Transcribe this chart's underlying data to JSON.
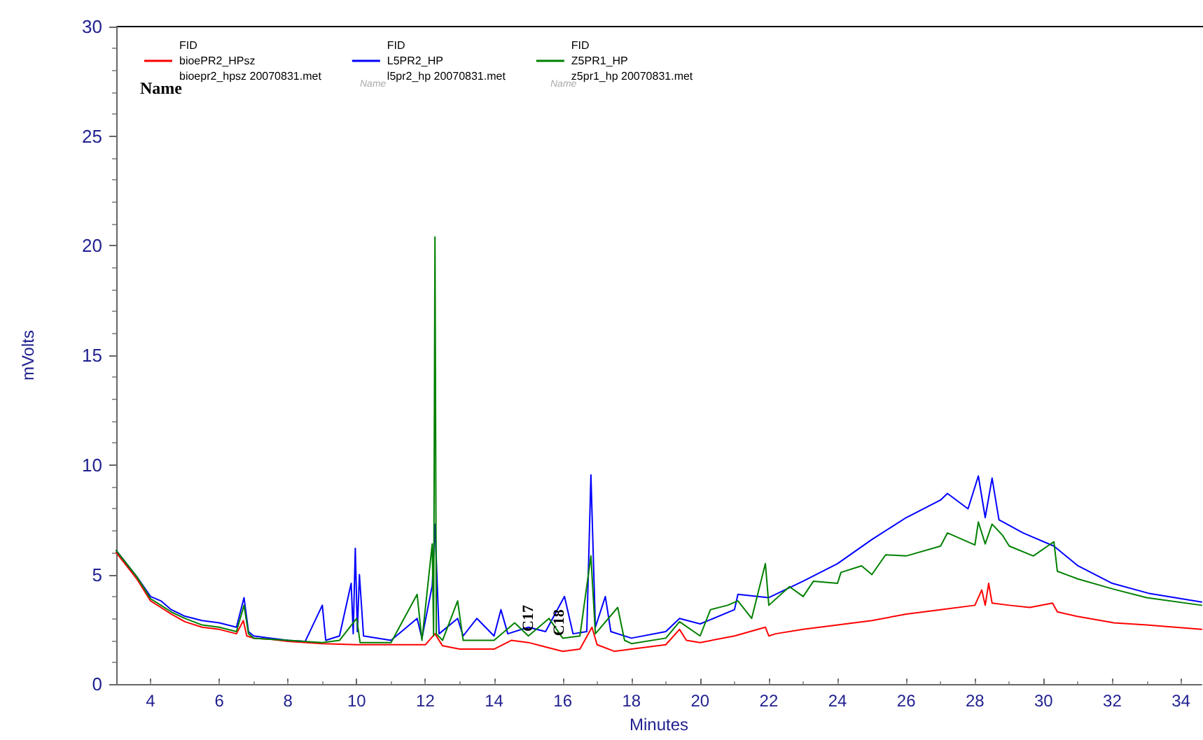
{
  "chart_data": {
    "type": "line",
    "xlabel": "Minutes",
    "ylabel": "mVolts",
    "xlim": [
      3,
      34.6
    ],
    "ylim": [
      0,
      30
    ],
    "xticks": [
      4,
      6,
      8,
      10,
      12,
      14,
      16,
      18,
      20,
      22,
      24,
      26,
      28,
      30,
      32,
      34
    ],
    "yticks": [
      0,
      5,
      10,
      15,
      20,
      25,
      30
    ],
    "grid": false,
    "legend": "top left",
    "marker": "none",
    "line_style": "solid",
    "annotations": [
      "Name",
      "Name",
      "Name",
      {
        "text": "C17",
        "x": 14.8,
        "y": 2.4
      },
      {
        "text": "C18",
        "x": 15.7,
        "y": 2.2
      }
    ],
    "series": [
      {
        "name": "FID\nbioePR2_HPsz\nbioepr2_hpsz 20070831.met",
        "color": "#ff0000",
        "x": [
          3.0,
          3.3,
          3.6,
          4.0,
          4.3,
          4.6,
          5.0,
          5.5,
          6.0,
          6.5,
          6.7,
          6.8,
          7.0,
          7.5,
          8.0,
          9.0,
          10.0,
          11.0,
          12.0,
          12.28,
          12.5,
          13.0,
          14.0,
          14.5,
          15.0,
          15.5,
          16.0,
          16.5,
          16.85,
          17.0,
          17.5,
          18.0,
          19.0,
          19.4,
          19.6,
          20.0,
          21.0,
          21.9,
          22.0,
          22.2,
          23.0,
          24.0,
          25.0,
          26.0,
          27.0,
          28.0,
          28.2,
          28.3,
          28.4,
          28.5,
          29.0,
          29.6,
          30.26,
          30.4,
          30.95,
          32.05,
          33.0,
          34.6
        ],
        "values": [
          6.0,
          5.4,
          4.8,
          3.8,
          3.5,
          3.2,
          2.85,
          2.6,
          2.5,
          2.3,
          2.9,
          2.2,
          2.1,
          2.05,
          1.95,
          1.85,
          1.8,
          1.8,
          1.8,
          2.3,
          1.75,
          1.6,
          1.6,
          2.0,
          1.9,
          1.7,
          1.5,
          1.6,
          2.6,
          1.8,
          1.5,
          1.6,
          1.8,
          2.5,
          2.0,
          1.9,
          2.2,
          2.6,
          2.2,
          2.3,
          2.5,
          2.7,
          2.9,
          3.2,
          3.4,
          3.6,
          4.3,
          3.6,
          4.6,
          3.7,
          3.6,
          3.5,
          3.7,
          3.3,
          3.1,
          2.8,
          2.7,
          2.5
        ]
      },
      {
        "name": "FID\nL5PR2_HP\nl5pr2_hp 20070831.met",
        "color": "#0000ff",
        "x": [
          3.0,
          3.3,
          3.6,
          4.0,
          4.3,
          4.6,
          5.0,
          5.5,
          6.0,
          6.5,
          6.72,
          6.85,
          7.0,
          7.5,
          8.0,
          8.5,
          9.0,
          9.1,
          9.5,
          9.84,
          9.9,
          9.96,
          10.02,
          10.08,
          10.2,
          11.0,
          11.76,
          11.9,
          12.2,
          12.28,
          12.4,
          12.94,
          13.1,
          13.5,
          14.0,
          14.2,
          14.4,
          15.0,
          15.5,
          16.05,
          16.3,
          16.7,
          16.82,
          16.95,
          17.24,
          17.4,
          18.0,
          19.0,
          19.4,
          20.0,
          21.0,
          21.1,
          22.0,
          23.0,
          24.0,
          25.0,
          26.0,
          27.0,
          27.2,
          27.8,
          28.1,
          28.3,
          28.5,
          28.7,
          29.4,
          30.3,
          31.0,
          32.0,
          33.05,
          34.6
        ],
        "values": [
          6.1,
          5.5,
          4.9,
          4.0,
          3.8,
          3.4,
          3.1,
          2.9,
          2.8,
          2.6,
          3.95,
          2.4,
          2.2,
          2.1,
          2.0,
          1.95,
          3.6,
          2.0,
          2.2,
          4.6,
          2.3,
          6.2,
          2.4,
          5.0,
          2.2,
          2.0,
          3.0,
          2.1,
          4.5,
          7.3,
          2.3,
          3.0,
          2.2,
          3.0,
          2.2,
          3.4,
          2.3,
          2.6,
          2.4,
          4.0,
          2.3,
          2.4,
          9.55,
          2.6,
          4.0,
          2.4,
          2.1,
          2.4,
          3.0,
          2.75,
          3.4,
          4.1,
          3.95,
          4.7,
          5.5,
          6.6,
          7.6,
          8.4,
          8.7,
          8.0,
          9.5,
          7.6,
          9.4,
          7.5,
          6.9,
          6.3,
          5.4,
          4.6,
          4.15,
          3.75
        ]
      },
      {
        "name": "FID\nZ5PR1_HP\nz5pr1_hp 20070831.met",
        "color": "#008000",
        "x": [
          3.0,
          3.3,
          3.6,
          4.0,
          4.3,
          4.6,
          5.0,
          5.5,
          6.0,
          6.5,
          6.72,
          6.85,
          7.0,
          7.5,
          8.0,
          9.0,
          9.5,
          10.0,
          10.1,
          11.0,
          11.76,
          11.9,
          12.2,
          12.24,
          12.28,
          12.32,
          12.5,
          12.94,
          13.1,
          14.0,
          14.6,
          15.0,
          15.6,
          16.0,
          16.5,
          16.82,
          16.95,
          17.6,
          17.8,
          18.0,
          19.0,
          19.4,
          20.0,
          20.3,
          20.8,
          21.1,
          21.5,
          21.9,
          22.0,
          22.6,
          23.0,
          23.3,
          24.0,
          24.1,
          24.7,
          25.0,
          25.4,
          26.0,
          27.0,
          27.2,
          28.0,
          28.1,
          28.3,
          28.5,
          28.8,
          29.0,
          29.7,
          30.3,
          30.4,
          31.0,
          32.0,
          33.0,
          34.6
        ],
        "values": [
          6.1,
          5.5,
          4.9,
          3.9,
          3.6,
          3.3,
          3.0,
          2.7,
          2.6,
          2.4,
          3.6,
          2.3,
          2.1,
          2.05,
          2.0,
          1.9,
          2.0,
          3.0,
          1.9,
          1.9,
          4.1,
          2.0,
          6.4,
          2.2,
          20.4,
          2.3,
          2.0,
          3.8,
          2.0,
          2.0,
          2.8,
          2.2,
          3.0,
          2.1,
          2.2,
          5.85,
          2.3,
          3.5,
          2.0,
          1.85,
          2.1,
          2.85,
          2.2,
          3.4,
          3.6,
          3.8,
          3.0,
          5.5,
          3.6,
          4.45,
          4.0,
          4.7,
          4.6,
          5.1,
          5.4,
          5.0,
          5.9,
          5.85,
          6.3,
          6.9,
          6.35,
          7.4,
          6.4,
          7.3,
          6.8,
          6.3,
          5.85,
          6.5,
          5.15,
          4.8,
          4.35,
          3.95,
          3.6
        ]
      }
    ]
  }
}
